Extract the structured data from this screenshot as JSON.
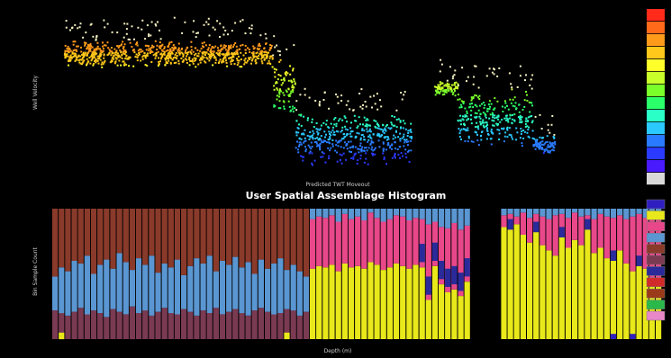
{
  "chart_data": [
    {
      "type": "scatter",
      "title": "",
      "xlabel": "Predicted TWT Moveout",
      "ylabel": "Well Velocity",
      "xlim": [
        0,
        100
      ],
      "ylim": [
        0,
        100
      ],
      "grid": false,
      "background": "#000000",
      "colormap": [
        "#ff2a1a",
        "#ff6a1a",
        "#ff9a1a",
        "#ffc81a",
        "#ffff2a",
        "#c8ff2a",
        "#7aff2a",
        "#2aff6a",
        "#2affc8",
        "#2ac8ff",
        "#2a7aff",
        "#2a3aff",
        "#4a1aff",
        "#d8d8d8"
      ],
      "segments": [
        {
          "x_start": 2,
          "x_end": 38,
          "y_center": 78,
          "spread": 9
        },
        {
          "x_start": 38,
          "x_end": 42,
          "y_center": 55,
          "spread": 20
        },
        {
          "x_start": 42,
          "x_end": 62,
          "y_center": 22,
          "spread": 18
        },
        {
          "x_start": 66,
          "x_end": 70,
          "y_center": 55,
          "spread": 5
        },
        {
          "x_start": 70,
          "x_end": 83,
          "y_center": 35,
          "spread": 20
        },
        {
          "x_start": 83,
          "x_end": 87,
          "y_center": 18,
          "spread": 6
        }
      ],
      "x_tick_labels": [
        "",
        "",
        "",
        "",
        ""
      ],
      "y_tick_labels": [
        "",
        "",
        "",
        "",
        "",
        "",
        ""
      ]
    },
    {
      "type": "bar",
      "stacked": true,
      "title": "User Spatial Assemblage Histogram",
      "xlabel": "Depth (m)",
      "ylabel": "Bin Sample Count",
      "legend_title": "",
      "legend_position": "right",
      "ylim": [
        0,
        100
      ],
      "gap_after_bar": 66,
      "gap_bars": 4,
      "series": [
        {
          "name": "",
          "color": "#2f1fc0"
        },
        {
          "name": "",
          "color": "#e8e81a"
        },
        {
          "name": "",
          "color": "#e8488a"
        },
        {
          "name": "",
          "color": "#5a96d2"
        },
        {
          "name": "",
          "color": "#8a3a2a"
        },
        {
          "name": "",
          "color": "#7a3a52"
        },
        {
          "name": "",
          "color": "#2a2a9a"
        },
        {
          "name": "",
          "color": "#d22a2a"
        },
        {
          "name": "",
          "color": "#9a3a1a"
        },
        {
          "name": "",
          "color": "#2ab84a"
        },
        {
          "name": "",
          "color": "#e888c8"
        }
      ],
      "bars_section_a": {
        "count": 40,
        "maroon_top": [
          22,
          20,
          18,
          21,
          24,
          19,
          22,
          20,
          17,
          23,
          21,
          19,
          25,
          20,
          22,
          18,
          21,
          24,
          20,
          19,
          23,
          21,
          18,
          22,
          20,
          24,
          19,
          21,
          23,
          20,
          18,
          22,
          24,
          21,
          19,
          20,
          23,
          22,
          18,
          21
        ],
        "blue_top": [
          48,
          55,
          52,
          60,
          58,
          64,
          50,
          57,
          61,
          54,
          66,
          59,
          53,
          62,
          57,
          64,
          51,
          58,
          55,
          61,
          49,
          56,
          62,
          58,
          64,
          52,
          60,
          57,
          63,
          55,
          59,
          50,
          61,
          54,
          58,
          62,
          53,
          57,
          52,
          48
        ]
      },
      "bars_section_b": {
        "count": 25,
        "yellow_top": [
          54,
          56,
          55,
          57,
          52,
          58,
          55,
          56,
          54,
          59,
          57,
          53,
          55,
          58,
          56,
          54,
          57,
          55,
          30,
          56,
          42,
          36,
          38,
          33,
          44
        ],
        "pink_top": [
          92,
          94,
          93,
          95,
          90,
          96,
          92,
          94,
          91,
          97,
          93,
          90,
          92,
          95,
          94,
          91,
          93,
          92,
          88,
          90,
          86,
          85,
          89,
          84,
          87
        ]
      },
      "bars_section_c": {
        "count": 25,
        "yellow_top": [
          86,
          84,
          88,
          80,
          74,
          82,
          72,
          68,
          64,
          78,
          70,
          76,
          72,
          84,
          66,
          70,
          62,
          60,
          68,
          58,
          52,
          56,
          54,
          46,
          44
        ],
        "pink_top": [
          95,
          96,
          94,
          97,
          93,
          96,
          94,
          92,
          95,
          96,
          93,
          97,
          94,
          95,
          92,
          96,
          94,
          93,
          95,
          92,
          94,
          96,
          93,
          95,
          94
        ]
      },
      "x_tick_labels": [
        "",
        "",
        "",
        "",
        "",
        ""
      ],
      "y_tick_labels": [
        "",
        "",
        "",
        "",
        ""
      ]
    }
  ]
}
